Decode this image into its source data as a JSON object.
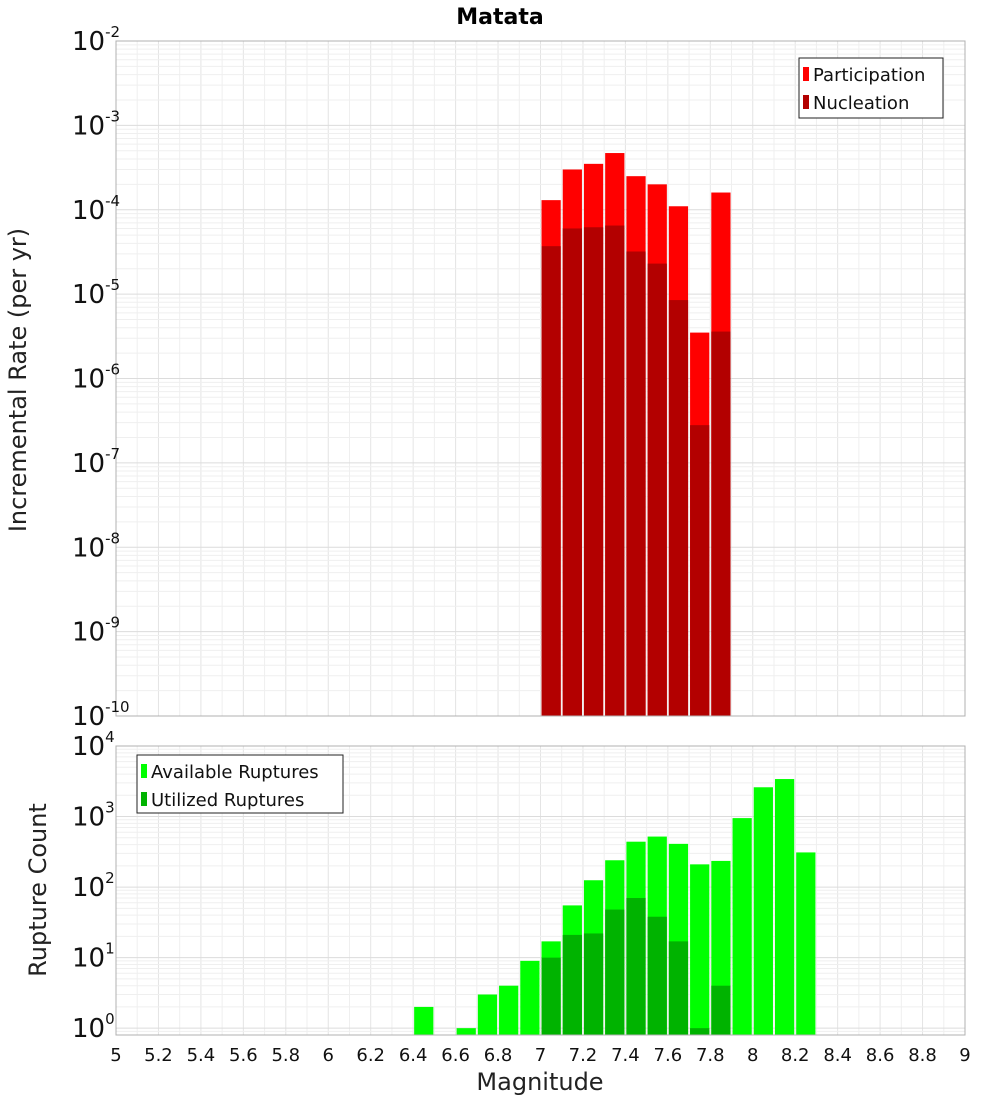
{
  "chart_data": [
    {
      "type": "bar",
      "title": "Matata",
      "xlabel": "",
      "ylabel": "Incremental Rate (per yr)",
      "yscale": "log",
      "ylim": [
        1e-10,
        0.01
      ],
      "xlim": [
        5,
        9
      ],
      "bin_width": 0.1,
      "grid": true,
      "legend_position": "top-right",
      "ytick_labels": [
        {
          "base": "10",
          "exp": "-10"
        },
        {
          "base": "10",
          "exp": "-9"
        },
        {
          "base": "10",
          "exp": "-8"
        },
        {
          "base": "10",
          "exp": "-7"
        },
        {
          "base": "10",
          "exp": "-6"
        },
        {
          "base": "10",
          "exp": "-5"
        },
        {
          "base": "10",
          "exp": "-4"
        },
        {
          "base": "10",
          "exp": "-3"
        },
        {
          "base": "10",
          "exp": "-2"
        }
      ],
      "x": [
        7.05,
        7.15,
        7.25,
        7.35,
        7.45,
        7.55,
        7.65,
        7.75,
        7.85
      ],
      "series": [
        {
          "name": "Participation",
          "color": "#ff0000",
          "values": [
            0.00013,
            0.0003,
            0.00035,
            0.00047,
            0.00025,
            0.0002,
            0.00011,
            3.5e-06,
            0.00016
          ]
        },
        {
          "name": "Nucleation",
          "color": "#b30000",
          "values": [
            3.7e-05,
            6e-05,
            6.2e-05,
            6.5e-05,
            3.2e-05,
            2.3e-05,
            8.5e-06,
            2.8e-07,
            3.6e-06
          ]
        }
      ]
    },
    {
      "type": "bar",
      "title": "",
      "xlabel": "Magnitude",
      "ylabel": "Rupture Count",
      "yscale": "log",
      "ylim": [
        0.8,
        10000
      ],
      "xlim": [
        5,
        9
      ],
      "bin_width": 0.1,
      "grid": true,
      "legend_position": "top-left",
      "ytick_labels": [
        {
          "base": "10",
          "exp": "0"
        },
        {
          "base": "10",
          "exp": "1"
        },
        {
          "base": "10",
          "exp": "2"
        },
        {
          "base": "10",
          "exp": "3"
        },
        {
          "base": "10",
          "exp": "4"
        }
      ],
      "xtick_labels": [
        "5",
        "5.2",
        "5.4",
        "5.6",
        "5.8",
        "6",
        "6.2",
        "6.4",
        "6.6",
        "6.8",
        "7",
        "7.2",
        "7.4",
        "7.6",
        "7.8",
        "8",
        "8.2",
        "8.4",
        "8.6",
        "8.8",
        "9"
      ],
      "x": [
        6.45,
        6.65,
        6.75,
        6.85,
        6.95,
        7.05,
        7.15,
        7.25,
        7.35,
        7.45,
        7.55,
        7.65,
        7.75,
        7.85,
        7.95,
        8.05,
        8.15,
        8.25
      ],
      "series": [
        {
          "name": "Available Ruptures",
          "color": "#00ff00",
          "values": [
            2,
            1,
            3,
            4,
            9,
            17,
            55,
            125,
            240,
            440,
            520,
            410,
            210,
            235,
            950,
            2600,
            3400,
            310
          ]
        },
        {
          "name": "Utilized Ruptures",
          "color": "#00b300",
          "values": [
            0,
            0,
            0,
            0,
            0,
            10,
            21,
            22,
            48,
            70,
            38,
            17,
            1,
            4,
            0,
            0,
            0,
            0
          ]
        }
      ]
    }
  ]
}
